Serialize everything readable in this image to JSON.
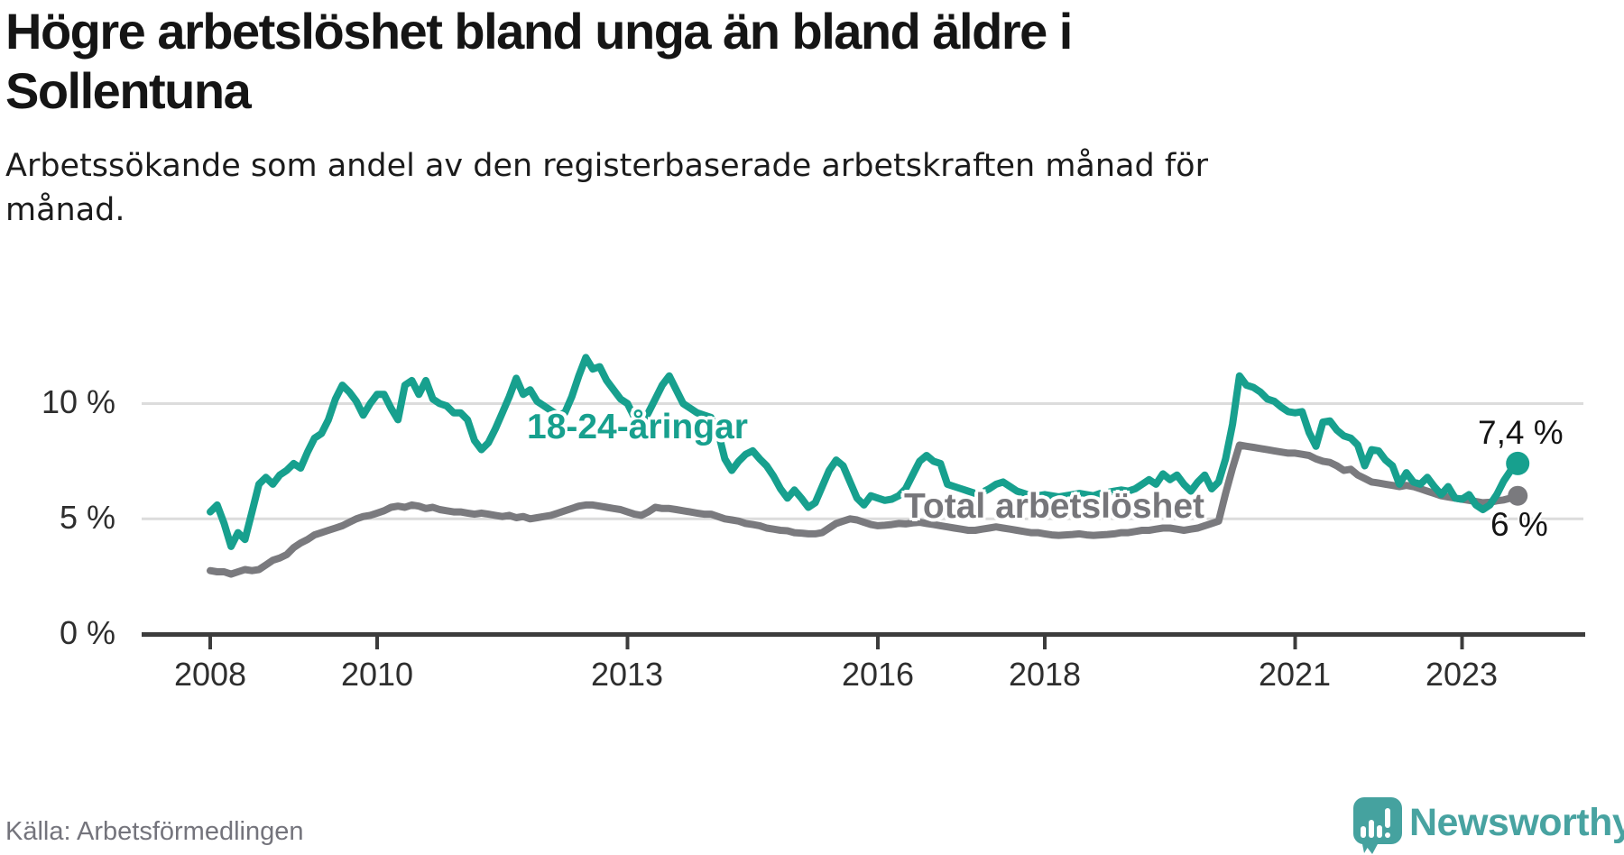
{
  "header": {
    "title_line1": "Högre arbetslöshet bland unga än bland äldre i",
    "title_line2": "Sollentuna",
    "subtitle_line1": "Arbetssökande som andel av den registerbaserade arbetskraften månad för",
    "subtitle_line2": "månad."
  },
  "footer": {
    "source": "Källa: Arbetsförmedlingen",
    "brand": "Newsworthy"
  },
  "colors": {
    "accent_teal": "#17a08e",
    "series_gray": "#7a7a7e",
    "grid": "#dcdcdc",
    "axis": "#3c3c3c",
    "brand_teal": "#48a3a1",
    "end_label_text": "#141414"
  },
  "chart_data": {
    "type": "line",
    "x_unit": "month",
    "x_start_year": 2008,
    "points_per_year": 12,
    "x_range": [
      "2008-01",
      "2023-09"
    ],
    "ylim": [
      0,
      14.2
    ],
    "grid": "horizontal-only",
    "legend": "inline-labels",
    "x_ticks": [
      {
        "year": 2008,
        "label": "2008"
      },
      {
        "year": 2010,
        "label": "2010"
      },
      {
        "year": 2013,
        "label": "2013"
      },
      {
        "year": 2016,
        "label": "2016"
      },
      {
        "year": 2018,
        "label": "2018"
      },
      {
        "year": 2021,
        "label": "2021"
      },
      {
        "year": 2023,
        "label": "2023"
      }
    ],
    "y_ticks": [
      {
        "value": 10,
        "label": "10 %"
      },
      {
        "value": 5,
        "label": "5 %"
      },
      {
        "value": 0,
        "label": "0 %"
      }
    ],
    "series": [
      {
        "name": "18-24-åringar",
        "color": "#17a08e",
        "end_label": "7,4 %",
        "end_value": 7.4,
        "values": [
          5.3,
          5.6,
          4.8,
          3.8,
          4.4,
          4.1,
          5.3,
          6.5,
          6.8,
          6.5,
          6.9,
          7.1,
          7.4,
          7.2,
          7.9,
          8.5,
          8.7,
          9.3,
          10.2,
          10.8,
          10.5,
          10.1,
          9.5,
          10.0,
          10.4,
          10.4,
          9.8,
          9.3,
          10.8,
          11.0,
          10.4,
          11.0,
          10.2,
          10.0,
          9.9,
          9.6,
          9.6,
          9.3,
          8.4,
          8.0,
          8.3,
          8.9,
          9.6,
          10.3,
          11.1,
          10.4,
          10.6,
          10.1,
          9.9,
          9.7,
          9.5,
          9.6,
          10.3,
          11.2,
          12.0,
          11.5,
          11.6,
          11.0,
          10.6,
          10.2,
          10.0,
          9.4,
          9.1,
          9.6,
          10.2,
          10.8,
          11.2,
          10.6,
          10.0,
          9.8,
          9.6,
          9.5,
          9.4,
          8.8,
          7.6,
          7.1,
          7.5,
          7.8,
          7.95,
          7.6,
          7.3,
          6.85,
          6.3,
          5.9,
          6.25,
          5.9,
          5.5,
          5.7,
          6.4,
          7.1,
          7.55,
          7.3,
          6.6,
          5.9,
          5.6,
          6.0,
          5.9,
          5.8,
          5.85,
          6.0,
          6.3,
          6.9,
          7.5,
          7.75,
          7.5,
          7.4,
          6.5,
          6.4,
          6.3,
          6.2,
          6.1,
          6.15,
          6.3,
          6.5,
          6.6,
          6.4,
          6.2,
          6.1,
          6.0,
          6.0,
          6.05,
          6.0,
          5.95,
          6.0,
          6.05,
          6.1,
          6.05,
          6.0,
          6.1,
          6.15,
          6.2,
          6.25,
          6.2,
          6.3,
          6.5,
          6.7,
          6.5,
          6.95,
          6.7,
          6.9,
          6.5,
          6.2,
          6.6,
          6.9,
          6.3,
          6.6,
          7.6,
          9.1,
          11.2,
          10.8,
          10.7,
          10.5,
          10.2,
          10.1,
          9.85,
          9.65,
          9.6,
          9.65,
          8.75,
          8.15,
          9.2,
          9.25,
          8.85,
          8.6,
          8.5,
          8.2,
          7.3,
          8.0,
          7.95,
          7.55,
          7.3,
          6.5,
          7.0,
          6.6,
          6.5,
          6.8,
          6.4,
          6.05,
          6.4,
          5.9,
          5.85,
          6.05,
          5.6,
          5.4,
          5.6,
          6.05,
          6.65,
          7.1,
          7.4
        ]
      },
      {
        "name": "Total arbetslöshet",
        "color": "#7a7a7e",
        "end_label": "6 %",
        "end_value": 6.0,
        "values": [
          2.75,
          2.7,
          2.7,
          2.6,
          2.7,
          2.8,
          2.75,
          2.8,
          3.0,
          3.2,
          3.3,
          3.45,
          3.75,
          3.95,
          4.1,
          4.3,
          4.4,
          4.5,
          4.6,
          4.7,
          4.85,
          5.0,
          5.1,
          5.15,
          5.25,
          5.35,
          5.5,
          5.55,
          5.5,
          5.6,
          5.55,
          5.45,
          5.5,
          5.4,
          5.35,
          5.3,
          5.3,
          5.25,
          5.2,
          5.25,
          5.2,
          5.15,
          5.1,
          5.15,
          5.05,
          5.1,
          5.0,
          5.05,
          5.1,
          5.15,
          5.25,
          5.35,
          5.45,
          5.55,
          5.6,
          5.6,
          5.55,
          5.5,
          5.45,
          5.4,
          5.3,
          5.2,
          5.15,
          5.3,
          5.5,
          5.45,
          5.45,
          5.4,
          5.35,
          5.3,
          5.25,
          5.2,
          5.2,
          5.1,
          5.0,
          4.95,
          4.9,
          4.8,
          4.75,
          4.7,
          4.6,
          4.55,
          4.5,
          4.48,
          4.4,
          4.38,
          4.35,
          4.35,
          4.4,
          4.6,
          4.8,
          4.9,
          5.0,
          4.95,
          4.85,
          4.75,
          4.7,
          4.72,
          4.75,
          4.8,
          4.78,
          4.82,
          4.85,
          4.8,
          4.75,
          4.7,
          4.65,
          4.6,
          4.55,
          4.5,
          4.5,
          4.55,
          4.6,
          4.65,
          4.6,
          4.55,
          4.5,
          4.45,
          4.4,
          4.4,
          4.35,
          4.3,
          4.28,
          4.3,
          4.32,
          4.35,
          4.3,
          4.28,
          4.3,
          4.32,
          4.35,
          4.4,
          4.4,
          4.45,
          4.5,
          4.5,
          4.55,
          4.6,
          4.6,
          4.55,
          4.5,
          4.55,
          4.6,
          4.7,
          4.8,
          4.9,
          6.1,
          7.2,
          8.2,
          8.15,
          8.1,
          8.05,
          8.0,
          7.95,
          7.9,
          7.85,
          7.85,
          7.8,
          7.75,
          7.6,
          7.5,
          7.45,
          7.3,
          7.1,
          7.15,
          6.9,
          6.75,
          6.6,
          6.55,
          6.5,
          6.45,
          6.4,
          6.45,
          6.4,
          6.3,
          6.2,
          6.1,
          6.0,
          5.95,
          5.9,
          5.85,
          5.8,
          5.75,
          5.7,
          5.72,
          5.78,
          5.82,
          5.9,
          6.0
        ]
      }
    ]
  }
}
